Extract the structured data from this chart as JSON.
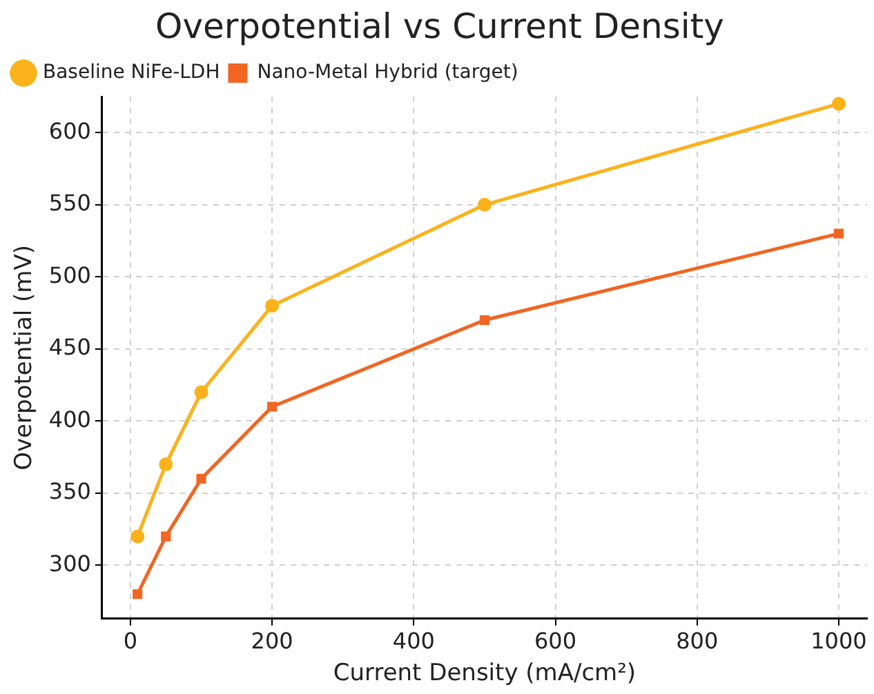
{
  "chart_data": {
    "type": "line",
    "title": "Overpotential vs Current Density",
    "xlabel": "Current Density (mA/cm²)",
    "ylabel": "Overpotential (mV)",
    "x": [
      10,
      50,
      100,
      200,
      500,
      1000
    ],
    "series": [
      {
        "name": "Baseline NiFe-LDH",
        "color": "#fbb21b",
        "values": [
          320,
          370,
          420,
          480,
          550,
          620
        ],
        "marker": "circle"
      },
      {
        "name": "Nano-Metal Hybrid (target)",
        "color": "#f26522",
        "values": [
          280,
          320,
          360,
          410,
          470,
          530
        ],
        "marker": "square"
      }
    ],
    "xlim": [
      -40,
      1040
    ],
    "xticks": [
      0,
      200,
      400,
      600,
      800,
      1000
    ],
    "ylim": [
      263,
      625
    ],
    "yticks": [
      300,
      350,
      400,
      450,
      500,
      550,
      600
    ],
    "grid": true,
    "legend": "top left",
    "line_style": "solid"
  }
}
